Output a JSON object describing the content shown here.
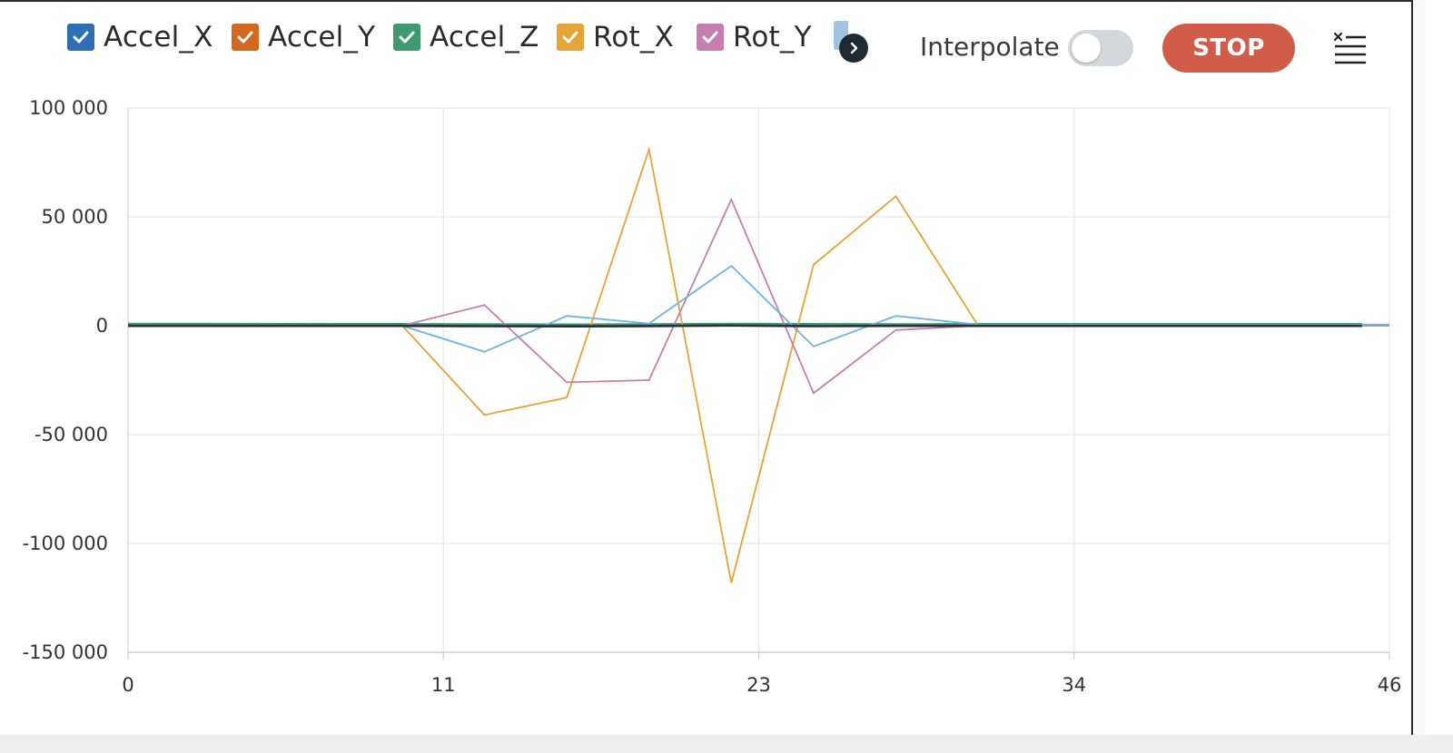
{
  "legend": [
    {
      "label": "Accel_X",
      "color": "#2f6fb5",
      "checked": true
    },
    {
      "label": "Accel_Y",
      "color": "#d2691e",
      "checked": true
    },
    {
      "label": "Accel_Z",
      "color": "#3f9a72",
      "checked": true
    },
    {
      "label": "Rot_X",
      "color": "#e4a437",
      "checked": true
    },
    {
      "label": "Rot_Y",
      "color": "#c47fb0",
      "checked": true
    }
  ],
  "legend_scroll_icon": "chevron-right-icon",
  "interpolate": {
    "label": "Interpolate",
    "enabled": false
  },
  "stop_button": {
    "label": "STOP",
    "color": "#d25c4a"
  },
  "clear_icon": "clear-list-icon",
  "chart_data": {
    "type": "line",
    "xlim": [
      0,
      46
    ],
    "ylim": [
      -150000,
      100000
    ],
    "xticks": [
      {
        "value": 0,
        "label": "0"
      },
      {
        "value": 11.5,
        "label": "11"
      },
      {
        "value": 23,
        "label": "23"
      },
      {
        "value": 34.5,
        "label": "34"
      },
      {
        "value": 46,
        "label": "46"
      }
    ],
    "yticks": [
      {
        "value": 100000,
        "label": "100 000"
      },
      {
        "value": 50000,
        "label": "50 000"
      },
      {
        "value": 0,
        "label": "0"
      },
      {
        "value": -50000,
        "label": "-50 000"
      },
      {
        "value": -100000,
        "label": "-100 000"
      },
      {
        "value": -150000,
        "label": "-150 000"
      }
    ],
    "grid": true,
    "series": [
      {
        "name": "Accel_X",
        "color": "#2f6fb5",
        "x": [
          0,
          10,
          13,
          16,
          19,
          22,
          25,
          28,
          31,
          46
        ],
        "y": [
          200,
          200,
          150,
          100,
          150,
          250,
          200,
          150,
          200,
          200
        ]
      },
      {
        "name": "Accel_Y",
        "color": "#d2691e",
        "x": [
          0,
          10,
          13,
          16,
          19,
          22,
          25,
          28,
          31,
          45
        ],
        "y": [
          300,
          300,
          200,
          300,
          400,
          500,
          300,
          300,
          300,
          300
        ]
      },
      {
        "name": "Accel_Z",
        "color": "#3f9a72",
        "x": [
          0,
          10,
          13,
          16,
          19,
          22,
          25,
          28,
          31,
          45
        ],
        "y": [
          800,
          700,
          600,
          500,
          600,
          800,
          700,
          600,
          700,
          700
        ]
      },
      {
        "name": "Rot_X",
        "color": "#e4a437",
        "x": [
          0,
          10,
          13,
          16,
          19,
          22,
          25,
          28,
          31,
          46
        ],
        "y": [
          0,
          0,
          -41000,
          -33000,
          81000,
          -118000,
          28000,
          59500,
          0,
          0
        ]
      },
      {
        "name": "Rot_Y",
        "color": "#c47fb0",
        "x": [
          0,
          10,
          13,
          16,
          19,
          22,
          25,
          28,
          31,
          46
        ],
        "y": [
          0,
          0,
          9500,
          -26000,
          -25000,
          58000,
          -31000,
          -2000,
          0,
          0
        ]
      },
      {
        "color": "#6fb3e0",
        "x": [
          0,
          10,
          13,
          16,
          19,
          22,
          25,
          28,
          31,
          46
        ],
        "y": [
          0,
          0,
          -12000,
          4500,
          1000,
          27500,
          -9500,
          4500,
          500,
          500
        ]
      },
      {
        "color": "#2a2f3a",
        "x": [
          0,
          10,
          13,
          16,
          19,
          22,
          25,
          28,
          31,
          45
        ],
        "y": [
          -100,
          -100,
          -200,
          -300,
          -150,
          100,
          -200,
          -100,
          -100,
          -100
        ]
      }
    ]
  }
}
